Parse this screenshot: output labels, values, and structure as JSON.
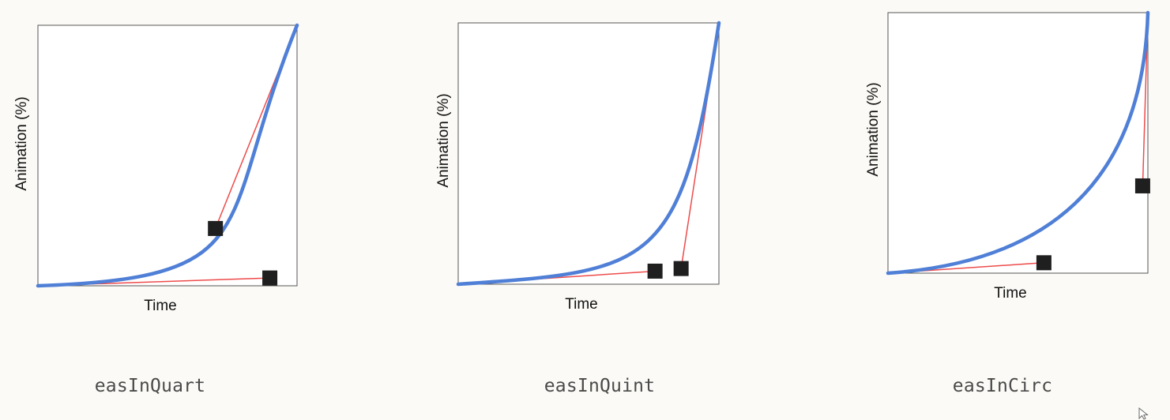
{
  "colors": {
    "curve": "#4f7fd6",
    "handle_line": "#ee4b4b",
    "handle": "#1f1f1f",
    "frame": "#555555",
    "caption": "#4a4a4a"
  },
  "chart_data": [
    {
      "type": "line",
      "caption": "easInQuart",
      "xlabel": "Time",
      "ylabel": "Animation (%)",
      "xlim": [
        0,
        1
      ],
      "ylim": [
        0,
        1
      ],
      "grid": false,
      "bezier": [
        0.895,
        0.03,
        0.685,
        0.22
      ]
    },
    {
      "type": "line",
      "caption": "easInQuint",
      "xlabel": "Time",
      "ylabel": "Animation (%)",
      "xlim": [
        0,
        1
      ],
      "ylim": [
        0,
        1
      ],
      "grid": false,
      "bezier": [
        0.755,
        0.05,
        0.855,
        0.06
      ]
    },
    {
      "type": "line",
      "caption": "easInCirc",
      "xlabel": "Time",
      "ylabel": "Animation (%)",
      "xlim": [
        0,
        1
      ],
      "ylim": [
        0,
        1
      ],
      "grid": false,
      "bezier": [
        0.6,
        0.04,
        0.98,
        0.335
      ]
    }
  ]
}
